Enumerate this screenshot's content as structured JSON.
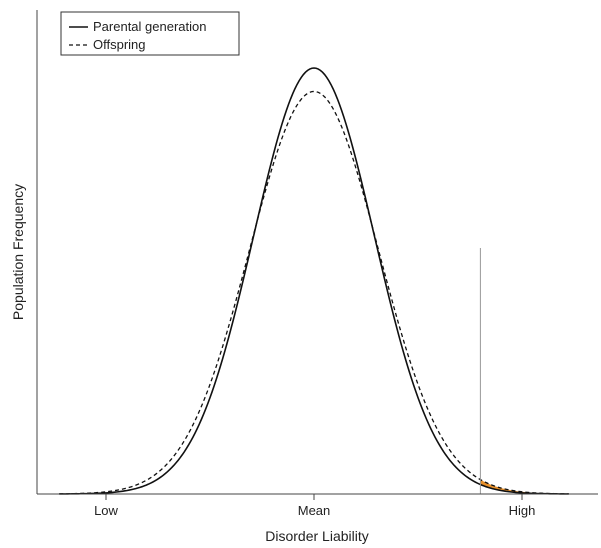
{
  "chart_data": {
    "type": "line",
    "xlabel": "Disorder Liability",
    "ylabel": "Population Frequency",
    "x_tick_labels": [
      {
        "label": "Low",
        "x": -2
      },
      {
        "label": "Mean",
        "x": 0
      },
      {
        "label": "High",
        "x": 2
      }
    ],
    "xlim": [
      -2.5,
      2.85
    ],
    "ylim": [
      0,
      1.05
    ],
    "threshold_x": 1.6,
    "threshold_line_color": "#999999",
    "tail_fill_color": "#e8902a",
    "legend": {
      "position": "top-left"
    },
    "series": [
      {
        "name": "Parental generation",
        "style": "solid",
        "color": "#111111",
        "mean": 0,
        "sd": 0.58,
        "peak": 1.0
      },
      {
        "name": "Offspring",
        "style": "dashed",
        "color": "#111111",
        "mean": 0,
        "sd": 0.62,
        "peak": 0.945
      }
    ]
  }
}
